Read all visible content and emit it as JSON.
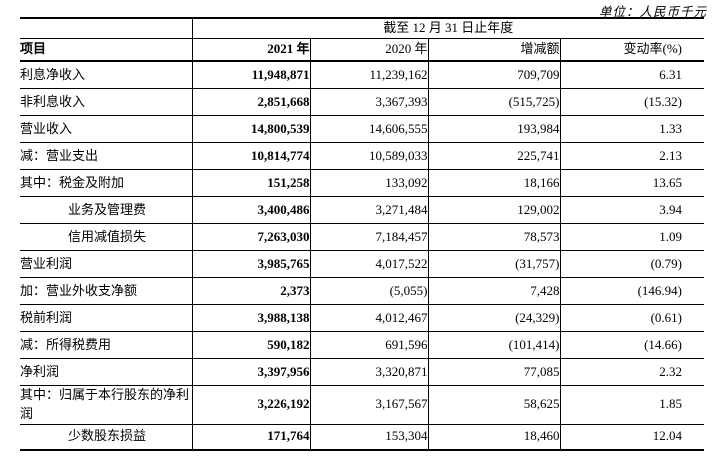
{
  "unit_note": "单位：人民币千元",
  "table": {
    "span_header": "截至 12 月 31 日止年度",
    "columns": [
      "项目",
      "2021 年",
      "2020 年",
      "增减额",
      "变动率(%)"
    ],
    "rows": [
      {
        "label": "利息净收入",
        "indent": false,
        "y2021": "11,948,871",
        "y2020": "11,239,162",
        "change": "709,709",
        "rate": "6.31"
      },
      {
        "label": "非利息收入",
        "indent": false,
        "y2021": "2,851,668",
        "y2020": "3,367,393",
        "change": "(515,725)",
        "rate": "(15.32)"
      },
      {
        "label": "营业收入",
        "indent": false,
        "y2021": "14,800,539",
        "y2020": "14,606,555",
        "change": "193,984",
        "rate": "1.33"
      },
      {
        "label": "减：营业支出",
        "indent": false,
        "y2021": "10,814,774",
        "y2020": "10,589,033",
        "change": "225,741",
        "rate": "2.13"
      },
      {
        "label": "其中：税金及附加",
        "indent": false,
        "y2021": "151,258",
        "y2020": "133,092",
        "change": "18,166",
        "rate": "13.65"
      },
      {
        "label": "业务及管理费",
        "indent": true,
        "y2021": "3,400,486",
        "y2020": "3,271,484",
        "change": "129,002",
        "rate": "3.94"
      },
      {
        "label": "信用减值损失",
        "indent": true,
        "y2021": "7,263,030",
        "y2020": "7,184,457",
        "change": "78,573",
        "rate": "1.09"
      },
      {
        "label": "营业利润",
        "indent": false,
        "y2021": "3,985,765",
        "y2020": "4,017,522",
        "change": "(31,757)",
        "rate": "(0.79)"
      },
      {
        "label": "加：营业外收支净额",
        "indent": false,
        "y2021": "2,373",
        "y2020": "(5,055)",
        "change": "7,428",
        "rate": "(146.94)"
      },
      {
        "label": "税前利润",
        "indent": false,
        "y2021": "3,988,138",
        "y2020": "4,012,467",
        "change": "(24,329)",
        "rate": "(0.61)"
      },
      {
        "label": "减：所得税费用",
        "indent": false,
        "y2021": "590,182",
        "y2020": "691,596",
        "change": "(101,414)",
        "rate": "(14.66)"
      },
      {
        "label": "净利润",
        "indent": false,
        "y2021": "3,397,956",
        "y2020": "3,320,871",
        "change": "77,085",
        "rate": "2.32"
      },
      {
        "label": "其中：归属于本行股东的净利润",
        "indent": false,
        "y2021": "3,226,192",
        "y2020": "3,167,567",
        "change": "58,625",
        "rate": "1.85"
      },
      {
        "label": "少数股东损益",
        "indent": true,
        "y2021": "171,764",
        "y2020": "153,304",
        "change": "18,460",
        "rate": "12.04"
      }
    ]
  }
}
